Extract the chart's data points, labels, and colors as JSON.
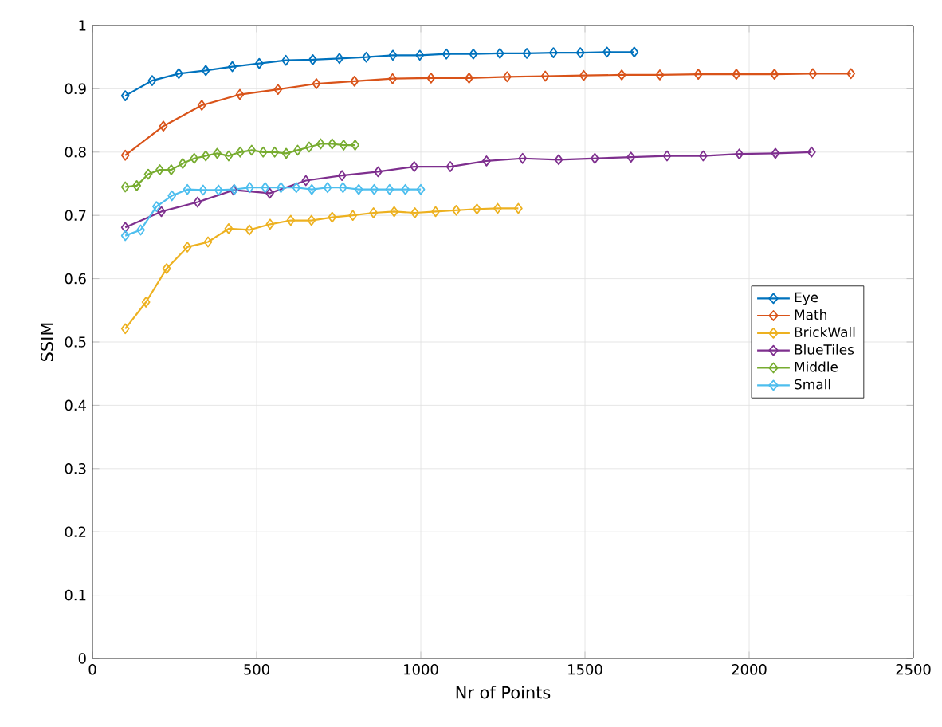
{
  "chart_data": {
    "type": "line",
    "xlabel": "Nr of Points",
    "ylabel": "SSIM",
    "marker": "diamond",
    "grid": true,
    "legend": "right",
    "xlim": [
      0,
      2500
    ],
    "xticks": [
      0,
      500,
      1000,
      1500,
      2000,
      2500
    ],
    "ylim": [
      0,
      1
    ],
    "yticks": [
      0,
      0.1,
      0.2,
      0.3,
      0.4,
      0.5,
      0.6,
      0.7,
      0.8,
      0.9,
      1
    ],
    "series": [
      {
        "name": "Eye",
        "color": "#0072bd",
        "x": [
          100,
          182,
          263,
          345,
          426,
          508,
          589,
          671,
          752,
          834,
          915,
          997,
          1078,
          1160,
          1241,
          1323,
          1404,
          1486,
          1567,
          1650
        ],
        "values": [
          0.889,
          0.913,
          0.924,
          0.929,
          0.935,
          0.94,
          0.945,
          0.946,
          0.948,
          0.95,
          0.953,
          0.953,
          0.955,
          0.955,
          0.956,
          0.956,
          0.957,
          0.957,
          0.958,
          0.958
        ]
      },
      {
        "name": "Math",
        "color": "#d95319",
        "x": [
          100,
          216,
          333,
          449,
          565,
          682,
          798,
          914,
          1031,
          1147,
          1263,
          1379,
          1496,
          1612,
          1728,
          1845,
          1961,
          2077,
          2194,
          2310
        ],
        "values": [
          0.795,
          0.841,
          0.874,
          0.891,
          0.899,
          0.908,
          0.912,
          0.916,
          0.917,
          0.917,
          0.919,
          0.92,
          0.921,
          0.922,
          0.922,
          0.923,
          0.923,
          0.923,
          0.924,
          0.924
        ]
      },
      {
        "name": "BrickWall",
        "color": "#edb120",
        "x": [
          100,
          163,
          226,
          289,
          352,
          415,
          478,
          541,
          604,
          667,
          730,
          793,
          856,
          919,
          982,
          1045,
          1108,
          1171,
          1234,
          1297
        ],
        "values": [
          0.521,
          0.563,
          0.616,
          0.65,
          0.658,
          0.679,
          0.677,
          0.686,
          0.692,
          0.692,
          0.697,
          0.7,
          0.704,
          0.706,
          0.704,
          0.706,
          0.708,
          0.71,
          0.711,
          0.711
        ]
      },
      {
        "name": "BlueTiles",
        "color": "#7e2f8e",
        "x": [
          100,
          210,
          320,
          430,
          540,
          650,
          760,
          870,
          980,
          1090,
          1200,
          1310,
          1420,
          1530,
          1640,
          1750,
          1860,
          1970,
          2080,
          2190
        ],
        "values": [
          0.681,
          0.706,
          0.721,
          0.74,
          0.735,
          0.755,
          0.763,
          0.769,
          0.777,
          0.777,
          0.786,
          0.79,
          0.788,
          0.79,
          0.792,
          0.794,
          0.794,
          0.797,
          0.798,
          0.8
        ]
      },
      {
        "name": "Middle",
        "color": "#77ac30",
        "x": [
          100,
          135,
          170,
          205,
          240,
          275,
          310,
          345,
          380,
          415,
          450,
          485,
          520,
          555,
          590,
          625,
          660,
          695,
          730,
          765,
          800
        ],
        "values": [
          0.745,
          0.747,
          0.765,
          0.772,
          0.772,
          0.782,
          0.79,
          0.794,
          0.798,
          0.794,
          0.8,
          0.803,
          0.8,
          0.8,
          0.798,
          0.803,
          0.808,
          0.813,
          0.813,
          0.811,
          0.811
        ]
      },
      {
        "name": "Small",
        "color": "#4dbeee",
        "x": [
          100,
          147,
          195,
          242,
          289,
          337,
          384,
          432,
          479,
          526,
          574,
          621,
          668,
          716,
          763,
          811,
          858,
          905,
          953,
          1000
        ],
        "values": [
          0.668,
          0.677,
          0.714,
          0.731,
          0.741,
          0.74,
          0.74,
          0.741,
          0.744,
          0.744,
          0.744,
          0.744,
          0.741,
          0.744,
          0.744,
          0.741,
          0.741,
          0.741,
          0.741,
          0.741
        ]
      }
    ]
  }
}
